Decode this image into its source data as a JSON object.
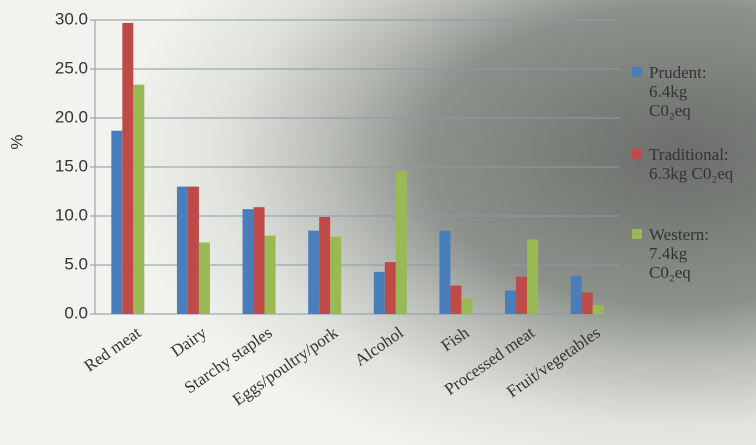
{
  "chart_data": {
    "type": "bar",
    "y_label": "%",
    "categories": [
      "Red meat",
      "Dairy",
      "Starchy staples",
      "Eggs/poultry/pork",
      "Alcohol",
      "Fish",
      "Processed meat",
      "Fruit/vegetables"
    ],
    "series": [
      {
        "name": "Prudent:",
        "label_lines": [
          "6.4kg",
          "C0₂eq"
        ],
        "color": "#4a7ebb",
        "values": [
          18.7,
          13.0,
          10.7,
          8.5,
          4.3,
          8.5,
          2.4,
          3.9
        ]
      },
      {
        "name": "Traditional:",
        "label_lines": [
          "6.3kg C0₂eq"
        ],
        "color": "#be4b48",
        "values": [
          29.7,
          13.0,
          10.9,
          9.9,
          5.3,
          2.9,
          3.8,
          2.2
        ]
      },
      {
        "name": "Western:",
        "label_lines": [
          "7.4kg",
          "C0₂eq"
        ],
        "color": "#98b954",
        "values": [
          23.4,
          7.3,
          8.0,
          7.9,
          14.6,
          1.6,
          7.6,
          0.9
        ]
      }
    ],
    "ylim": [
      0,
      30
    ],
    "yticks": [
      {
        "value": 0,
        "label": "0.0"
      },
      {
        "value": 5,
        "label": "5.0"
      },
      {
        "value": 10,
        "label": "10.0"
      },
      {
        "value": 15,
        "label": "15.0"
      },
      {
        "value": 20,
        "label": "20.0"
      },
      {
        "value": 25,
        "label": "25.0"
      },
      {
        "value": 30,
        "label": "30.0"
      }
    ],
    "grid": true
  }
}
